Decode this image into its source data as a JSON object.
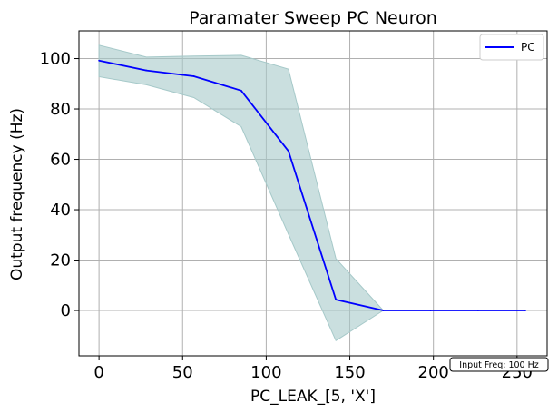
{
  "chart_data": {
    "type": "line",
    "title": "Paramater Sweep PC Neuron",
    "xlabel": "PC_LEAK_[5, 'X']",
    "ylabel": "Output frequency (Hz)",
    "xlim": [
      -12,
      268
    ],
    "ylim": [
      -18,
      111
    ],
    "x_ticks": [
      0,
      50,
      100,
      150,
      200,
      250
    ],
    "y_ticks": [
      0,
      20,
      40,
      60,
      80,
      100
    ],
    "grid": true,
    "legend_position": "top-right",
    "annotation": "Input Freq: 100 Hz",
    "series": [
      {
        "name": "PC",
        "color": "#0000ff",
        "band_color": "#a6c9c9",
        "x": [
          0,
          28.3,
          56.7,
          85,
          113.3,
          141.7,
          170,
          198.3,
          226.7,
          255
        ],
        "y": [
          99.2,
          95.3,
          93.0,
          87.3,
          63.3,
          4.3,
          0,
          0,
          0,
          0
        ],
        "upper": [
          105.3,
          100.6,
          101.0,
          101.3,
          95.8,
          20.6,
          0,
          0,
          0,
          0
        ],
        "lower": [
          92.8,
          89.6,
          84.5,
          73.0,
          30.3,
          -12.0,
          0,
          0,
          0,
          0
        ]
      }
    ]
  }
}
